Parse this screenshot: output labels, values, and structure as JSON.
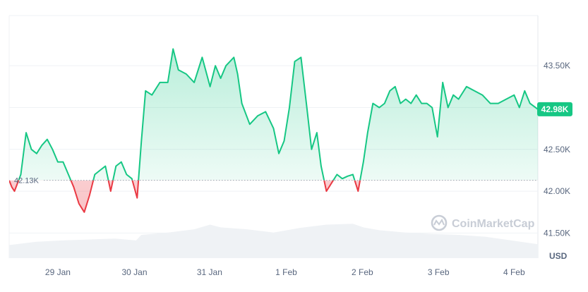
{
  "chart_data": {
    "type": "area",
    "currency_label": "USD",
    "watermark": "CoinMarketCap",
    "ylim": [
      41.2,
      44.1
    ],
    "xlim": [
      0,
      100
    ],
    "y_ticks": [
      {
        "value": 43.5,
        "label": "43.50K"
      },
      {
        "value": 43.0,
        "label": "43.00K"
      },
      {
        "value": 42.5,
        "label": "42.50K"
      },
      {
        "value": 42.0,
        "label": "42.00K"
      },
      {
        "value": 41.5,
        "label": "41.50K"
      }
    ],
    "x_ticks": [
      {
        "x": 9.2,
        "label": "29 Jan"
      },
      {
        "x": 23.7,
        "label": "30 Jan"
      },
      {
        "x": 37.9,
        "label": "31 Jan"
      },
      {
        "x": 52.4,
        "label": "1 Feb"
      },
      {
        "x": 66.8,
        "label": "2 Feb"
      },
      {
        "x": 81.2,
        "label": "3 Feb"
      },
      {
        "x": 95.5,
        "label": "4 Feb"
      }
    ],
    "reference": {
      "value": 42.13,
      "label": "42.13K"
    },
    "current": {
      "value": 42.98,
      "label": "42.98K"
    },
    "colors": {
      "up": "#16c784",
      "down": "#ea3943",
      "fill": "#16c784",
      "volume": "#eff2f5"
    },
    "series": [
      {
        "values": [
          [
            0,
            42.13
          ],
          [
            0.5,
            42.05
          ],
          [
            1,
            42.0
          ],
          [
            2.2,
            42.2
          ],
          [
            3.2,
            42.7
          ],
          [
            4.2,
            42.5
          ],
          [
            5.2,
            42.45
          ],
          [
            6.2,
            42.55
          ],
          [
            7.2,
            42.62
          ],
          [
            8.2,
            42.5
          ],
          [
            9.2,
            42.35
          ],
          [
            10.2,
            42.35
          ],
          [
            11.2,
            42.2
          ],
          [
            12.2,
            42.05
          ],
          [
            13.2,
            41.85
          ],
          [
            14.2,
            41.75
          ],
          [
            15.2,
            41.95
          ],
          [
            16.2,
            42.2
          ],
          [
            17.2,
            42.25
          ],
          [
            18.2,
            42.3
          ],
          [
            19.2,
            42.0
          ],
          [
            20.2,
            42.3
          ],
          [
            21.2,
            42.35
          ],
          [
            22.2,
            42.2
          ],
          [
            23.2,
            42.15
          ],
          [
            24.2,
            41.92
          ],
          [
            25,
            42.6
          ],
          [
            25.8,
            43.2
          ],
          [
            27,
            43.15
          ],
          [
            28.5,
            43.3
          ],
          [
            30,
            43.3
          ],
          [
            31,
            43.7
          ],
          [
            32,
            43.45
          ],
          [
            33.5,
            43.4
          ],
          [
            35,
            43.3
          ],
          [
            36.5,
            43.6
          ],
          [
            38,
            43.25
          ],
          [
            39,
            43.5
          ],
          [
            40,
            43.35
          ],
          [
            41,
            43.5
          ],
          [
            42.5,
            43.6
          ],
          [
            43.2,
            43.4
          ],
          [
            44,
            43.05
          ],
          [
            45.5,
            42.8
          ],
          [
            47,
            42.9
          ],
          [
            48.5,
            42.95
          ],
          [
            50,
            42.75
          ],
          [
            51,
            42.45
          ],
          [
            52,
            42.6
          ],
          [
            53,
            43.0
          ],
          [
            54,
            43.55
          ],
          [
            55.2,
            43.6
          ],
          [
            56.3,
            43.0
          ],
          [
            57.2,
            42.5
          ],
          [
            58.2,
            42.7
          ],
          [
            59,
            42.3
          ],
          [
            60,
            42.0
          ],
          [
            61,
            42.1
          ],
          [
            62,
            42.2
          ],
          [
            63,
            42.15
          ],
          [
            64,
            42.18
          ],
          [
            65,
            42.2
          ],
          [
            66,
            42.0
          ],
          [
            67,
            42.35
          ],
          [
            67.8,
            42.7
          ],
          [
            68.8,
            43.05
          ],
          [
            70,
            43.0
          ],
          [
            71,
            43.05
          ],
          [
            72,
            43.2
          ],
          [
            73,
            43.25
          ],
          [
            74,
            43.05
          ],
          [
            75,
            43.1
          ],
          [
            76,
            43.05
          ],
          [
            77,
            43.15
          ],
          [
            78,
            43.05
          ],
          [
            79,
            43.05
          ],
          [
            80,
            43.0
          ],
          [
            81,
            42.65
          ],
          [
            82,
            43.3
          ],
          [
            83,
            43.0
          ],
          [
            84,
            43.15
          ],
          [
            85,
            43.1
          ],
          [
            86.5,
            43.25
          ],
          [
            88,
            43.2
          ],
          [
            89.5,
            43.15
          ],
          [
            91,
            43.05
          ],
          [
            92.5,
            43.05
          ],
          [
            94,
            43.1
          ],
          [
            95.5,
            43.15
          ],
          [
            96.5,
            43.0
          ],
          [
            97.5,
            43.2
          ],
          [
            98.5,
            43.05
          ],
          [
            100,
            42.98
          ]
        ]
      }
    ],
    "volume": [
      [
        0,
        0.28
      ],
      [
        5,
        0.35
      ],
      [
        10,
        0.38
      ],
      [
        15,
        0.4
      ],
      [
        20,
        0.42
      ],
      [
        24,
        0.38
      ],
      [
        25,
        0.5
      ],
      [
        30,
        0.55
      ],
      [
        35,
        0.62
      ],
      [
        38,
        0.72
      ],
      [
        40,
        0.66
      ],
      [
        45,
        0.62
      ],
      [
        50,
        0.55
      ],
      [
        55,
        0.65
      ],
      [
        60,
        0.72
      ],
      [
        65,
        0.74
      ],
      [
        67,
        0.66
      ],
      [
        70,
        0.6
      ],
      [
        75,
        0.55
      ],
      [
        80,
        0.52
      ],
      [
        85,
        0.5
      ],
      [
        90,
        0.46
      ],
      [
        95,
        0.38
      ],
      [
        100,
        0.3
      ]
    ]
  }
}
